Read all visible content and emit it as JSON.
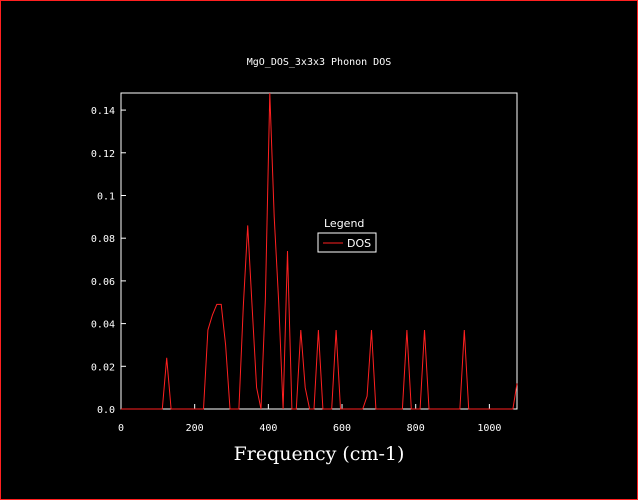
{
  "chart_data": {
    "type": "line",
    "title": "MgO_DOS_3x3x3 Phonon DOS",
    "xlabel": "Frequency (cm-1)",
    "ylabel": "",
    "xlim": [
      0,
      1075
    ],
    "ylim": [
      0,
      0.148
    ],
    "x_ticks": [
      0,
      200,
      400,
      600,
      800,
      1000
    ],
    "x_tick_labels": [
      "0",
      "200",
      "400",
      "600",
      "800",
      "1000"
    ],
    "y_ticks": [
      0,
      0.02,
      0.04,
      0.06,
      0.08,
      0.1,
      0.12,
      0.14
    ],
    "y_tick_labels": [
      "0.0",
      "0.02",
      "0.04",
      "0.06",
      "0.08",
      "0.1",
      "0.12",
      "0.14"
    ],
    "grid": false,
    "legend": {
      "title": "Legend",
      "placement": "center"
    },
    "colors": {
      "background": "#000000",
      "axes": "#ffffff",
      "series": "#ff2020",
      "border": "#ff2020"
    },
    "series": [
      {
        "name": "DOS",
        "x": [
          0,
          100,
          112,
          124,
          136,
          148,
          200,
          212,
          224,
          236,
          248,
          260,
          272,
          284,
          296,
          308,
          320,
          332,
          344,
          356,
          368,
          380,
          392,
          404,
          416,
          428,
          440,
          452,
          464,
          476,
          488,
          500,
          512,
          524,
          536,
          548,
          560,
          572,
          584,
          596,
          608,
          620,
          632,
          644,
          656,
          668,
          680,
          692,
          704,
          716,
          728,
          740,
          752,
          764,
          776,
          788,
          800,
          812,
          824,
          836,
          848,
          860,
          872,
          884,
          896,
          908,
          920,
          932,
          944,
          956,
          968,
          980,
          992,
          1004,
          1016,
          1028,
          1040,
          1052,
          1064,
          1075
        ],
        "y": [
          0,
          0,
          0,
          0.024,
          0,
          0,
          0,
          0,
          0,
          0.037,
          0.044,
          0.049,
          0.049,
          0.03,
          0,
          0,
          0,
          0.048,
          0.086,
          0.048,
          0.01,
          0,
          0.052,
          0.148,
          0.09,
          0.05,
          0,
          0.074,
          0,
          0,
          0.037,
          0.01,
          0,
          0,
          0.037,
          0,
          0,
          0,
          0.037,
          0,
          0,
          0,
          0,
          0,
          0,
          0.006,
          0.037,
          0,
          0,
          0,
          0,
          0,
          0,
          0,
          0.037,
          0,
          0,
          0,
          0.037,
          0,
          0,
          0,
          0,
          0,
          0,
          0,
          0,
          0.037,
          0,
          0,
          0,
          0,
          0,
          0,
          0,
          0,
          0,
          0,
          0,
          0.012
        ]
      }
    ]
  }
}
